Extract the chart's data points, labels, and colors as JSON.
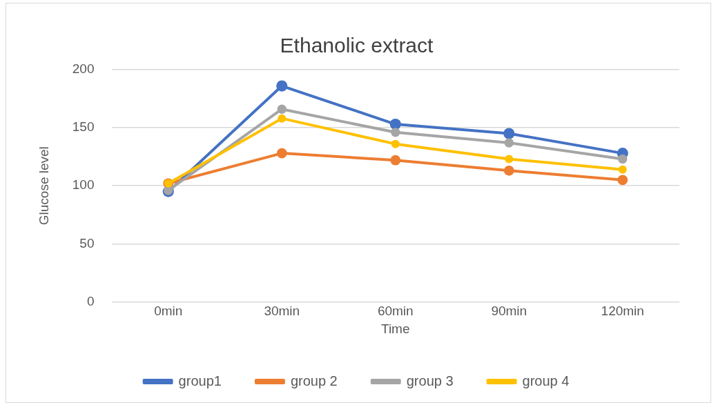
{
  "chart_data": {
    "type": "line",
    "title": "Ethanolic extract",
    "xlabel": "Time",
    "ylabel": "Glucose level",
    "categories": [
      "0min",
      "30min",
      "60min",
      "90min",
      "120min"
    ],
    "series": [
      {
        "name": "group1",
        "color": "#4472c4",
        "values": [
          95,
          186,
          153,
          145,
          128
        ]
      },
      {
        "name": "group 2",
        "color": "#ed7d31",
        "values": [
          102,
          128,
          122,
          113,
          105
        ]
      },
      {
        "name": "group 3",
        "color": "#a5a5a5",
        "values": [
          96,
          166,
          146,
          137,
          123
        ]
      },
      {
        "name": "group 4",
        "color": "#ffc000",
        "values": [
          102,
          158,
          136,
          123,
          114
        ]
      }
    ],
    "ylim": [
      0,
      200
    ],
    "yticks": [
      0,
      50,
      100,
      150,
      200
    ],
    "grid": "y",
    "legend": "bottom",
    "marker": "circle",
    "line_style": "solid"
  }
}
